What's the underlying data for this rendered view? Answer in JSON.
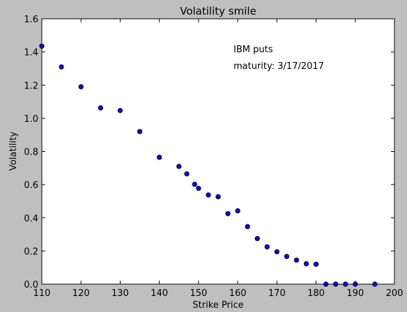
{
  "chart_data": {
    "type": "scatter",
    "title": "Volatility smile",
    "xlabel": "Strike Price",
    "ylabel": "Volatility",
    "xlim": [
      110,
      200
    ],
    "ylim": [
      0.0,
      1.6
    ],
    "xticks": [
      110,
      120,
      130,
      140,
      150,
      160,
      170,
      180,
      190,
      200
    ],
    "xtick_labels": [
      "110",
      "120",
      "130",
      "140",
      "150",
      "160",
      "170",
      "180",
      "190",
      "200"
    ],
    "yticks": [
      0.0,
      0.2,
      0.4,
      0.6,
      0.8,
      1.0,
      1.2,
      1.4,
      1.6
    ],
    "ytick_labels": [
      "0.0",
      "0.2",
      "0.4",
      "0.6",
      "0.8",
      "1.0",
      "1.2",
      "1.4",
      "1.6"
    ],
    "grid": false,
    "marker_color": "#1010a8",
    "annotations": [
      "IBM puts",
      "maturity: 3/17/2017"
    ],
    "series": [
      {
        "x": [
          110,
          115,
          120,
          125,
          130,
          135,
          140,
          145,
          147,
          149,
          150,
          152.5,
          155,
          157.5,
          160,
          162.5,
          165,
          167.5,
          170,
          172.5,
          175,
          177.5,
          180,
          182.5,
          185,
          187.5,
          190,
          195
        ],
        "y": [
          1.435,
          1.31,
          1.19,
          1.063,
          1.047,
          0.92,
          0.765,
          0.71,
          0.665,
          0.602,
          0.578,
          0.538,
          0.527,
          0.425,
          0.442,
          0.347,
          0.275,
          0.225,
          0.195,
          0.167,
          0.145,
          0.123,
          0.12,
          0.0,
          0.0,
          0.0,
          0.0,
          0.0
        ]
      }
    ]
  }
}
